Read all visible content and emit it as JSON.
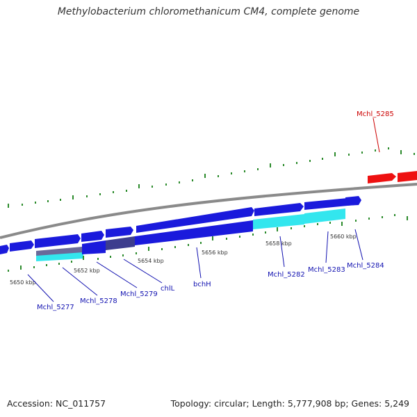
{
  "title": "Methylobacterium chloromethanicum CM4, complete genome",
  "footer": {
    "accession": "Accession: NC_011757",
    "summary": "Topology: circular; Length: 5,777,908 bp; Genes: 5,249"
  },
  "colors": {
    "backbone": "#8a8a8a",
    "cds": "#1a1adc",
    "cds_highlight": "#33e6ee",
    "cds_dark": "#3d3d8e",
    "reverse_gene": "#ee1111",
    "tick": "#2a8a2a",
    "label_blue": "#1010b0",
    "label_red": "#cc0000"
  },
  "ticks": [
    {
      "label": "5650 kbp"
    },
    {
      "label": "5652 kbp"
    },
    {
      "label": "5654 kbp"
    },
    {
      "label": "5656 kbp"
    },
    {
      "label": "5658 kbp"
    },
    {
      "label": "5660 kbp"
    }
  ],
  "genes": [
    {
      "name": "Mchl_5277",
      "strand": "forward"
    },
    {
      "name": "Mchl_5278",
      "strand": "forward"
    },
    {
      "name": "Mchl_5279",
      "strand": "forward"
    },
    {
      "name": "chlL",
      "strand": "forward"
    },
    {
      "name": "bchH",
      "strand": "forward"
    },
    {
      "name": "Mchl_5282",
      "strand": "forward"
    },
    {
      "name": "Mchl_5283",
      "strand": "forward"
    },
    {
      "name": "Mchl_5284",
      "strand": "forward"
    },
    {
      "name": "Mchl_5285",
      "strand": "reverse"
    }
  ]
}
